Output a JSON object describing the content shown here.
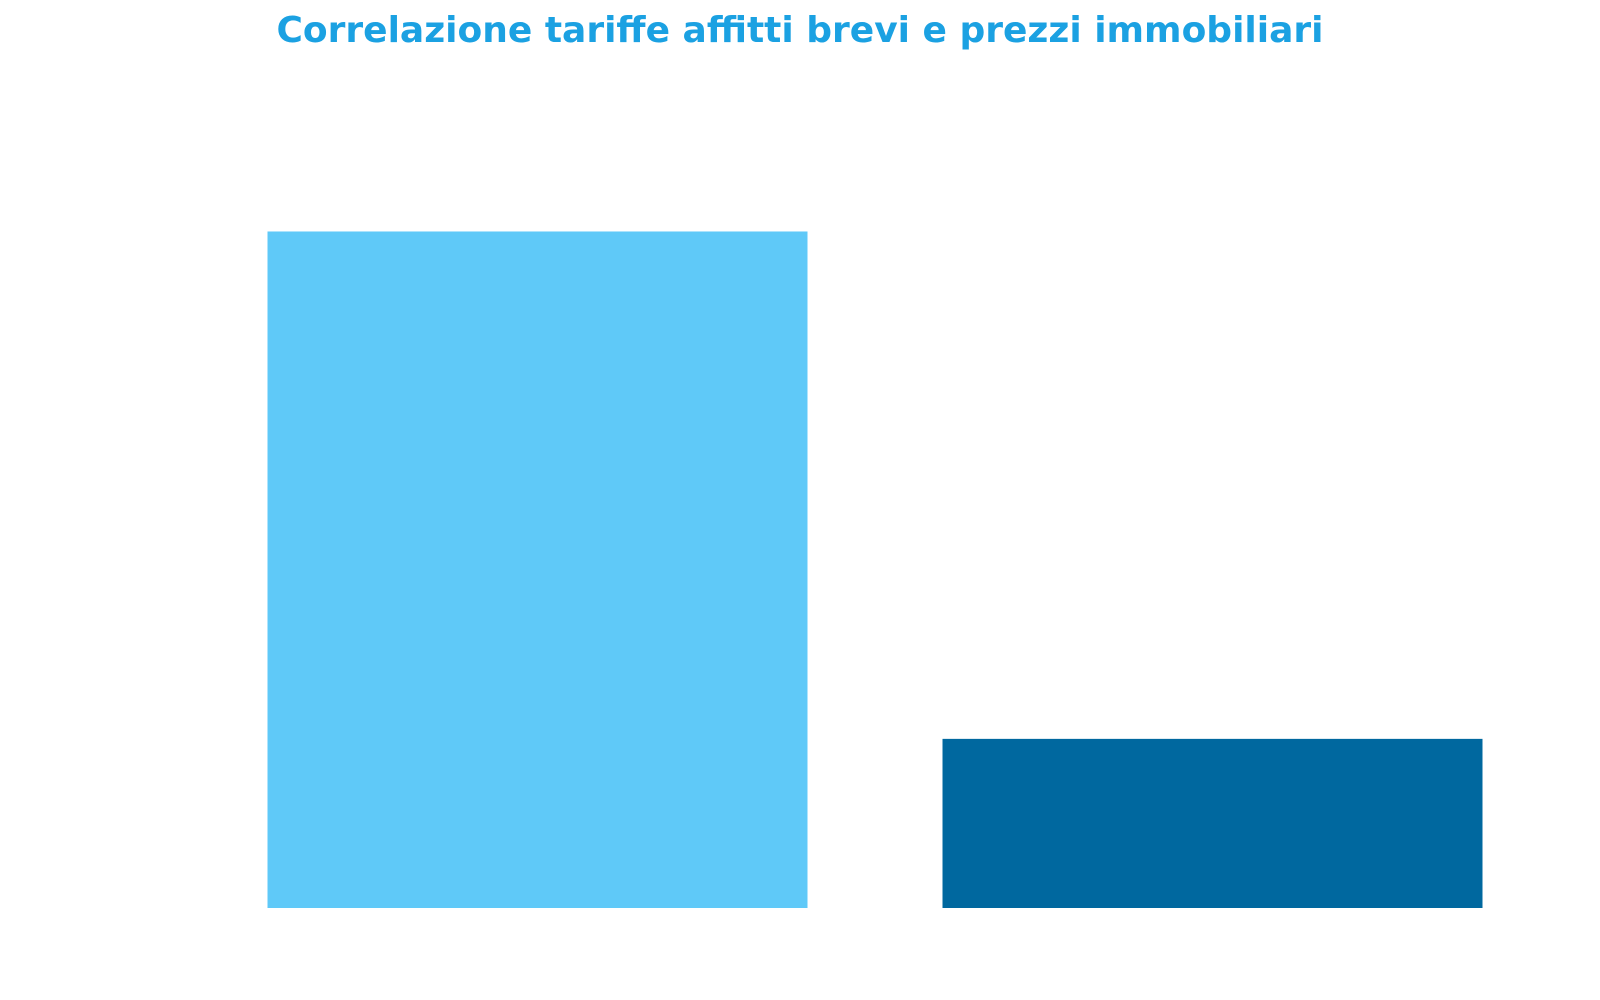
{
  "chart_data": {
    "type": "bar",
    "title": "Correlazione tariffe affitti brevi e prezzi immobiliari",
    "categories": [
      "",
      ""
    ],
    "values": [
      4.0,
      1.0
    ],
    "colors": [
      "#5FC9F8",
      "#00689F"
    ],
    "ylim": [
      0,
      4.6
    ],
    "grid": false,
    "legend": "none",
    "xlabel": "",
    "ylabel": ""
  },
  "colors": {
    "title": "#1BA1E2",
    "background": "#FFFFFF"
  }
}
